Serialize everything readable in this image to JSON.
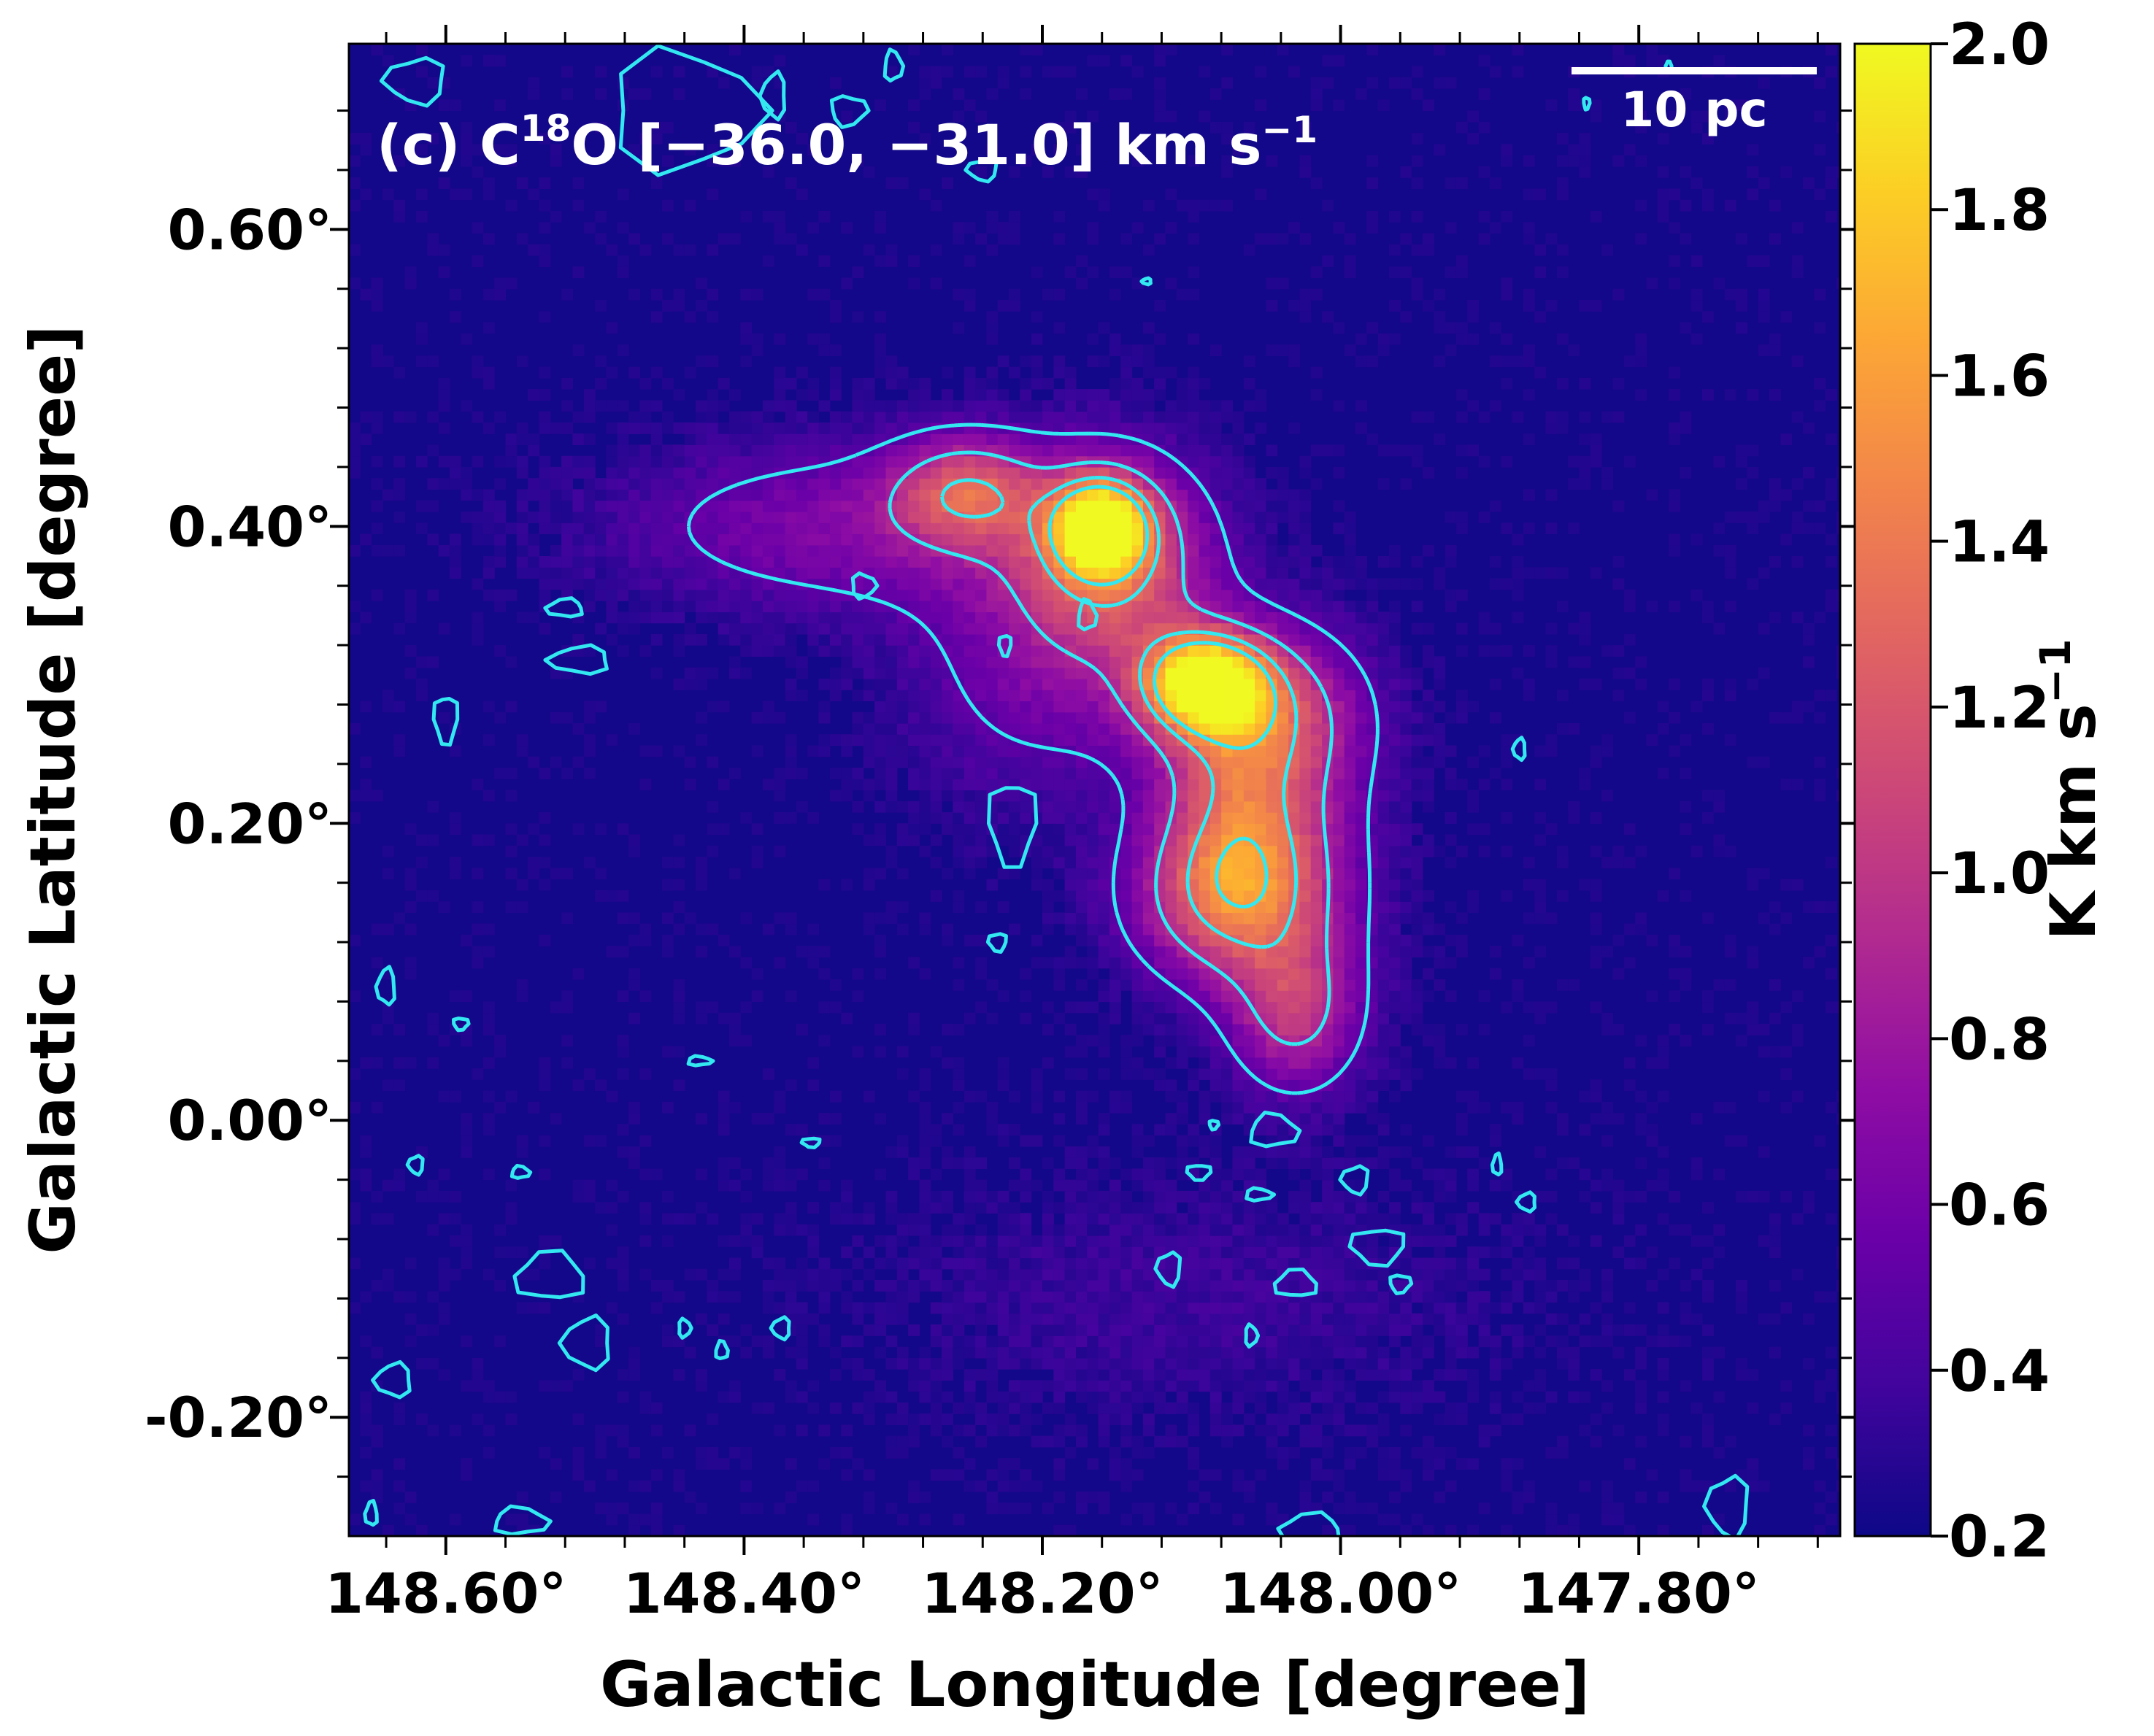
{
  "chart_data": {
    "type": "heatmap",
    "panel_label": "(c)",
    "title": "C¹⁸O [−36.0, −31.0] km s⁻¹",
    "title_parts": {
      "label": "(c) C",
      "sup": "18",
      "rest": "O [−36.0, −31.0] km s",
      "unit_sup": "−1"
    },
    "xlabel": "Galactic Longitude [degree]",
    "ylabel": "Galactic Latitude [degree]",
    "x_axis": {
      "reversed": true,
      "xlim": [
        148.665,
        147.665
      ],
      "ticks": [
        148.6,
        148.4,
        148.2,
        148.0,
        147.8
      ],
      "tick_labels": [
        "148.60°",
        "148.40°",
        "148.20°",
        "148.00°",
        "147.80°"
      ],
      "minor_step": 0.04
    },
    "y_axis": {
      "ylim": [
        -0.28,
        0.725
      ],
      "ticks": [
        0.6,
        0.4,
        0.2,
        0.0,
        -0.2
      ],
      "tick_labels": [
        "0.60°",
        "0.40°",
        "0.20°",
        "0.00°",
        "-0.20°"
      ],
      "minor_step": 0.04
    },
    "colorbar": {
      "label": "K km s",
      "label_sup": "−1",
      "colormap": "plasma",
      "range": [
        0.2,
        2.0
      ],
      "ticks": [
        0.2,
        0.4,
        0.6,
        0.8,
        1.0,
        1.2,
        1.4,
        1.6,
        1.8,
        2.0
      ],
      "tick_labels": [
        "0.2",
        "0.4",
        "0.6",
        "0.8",
        "1.0",
        "1.2",
        "1.4",
        "1.6",
        "1.8",
        "2.0"
      ]
    },
    "scale_bar": {
      "label": "10 pc"
    },
    "contour_color": "#33e8f0",
    "background_value": 0.22,
    "emission_components": [
      {
        "l": 148.161,
        "b": 0.4,
        "peak": 1.45,
        "sigma_l": 0.022,
        "sigma_b": 0.022
      },
      {
        "l": 148.15,
        "b": 0.375,
        "peak": 0.85,
        "sigma_l": 0.045,
        "sigma_b": 0.05
      },
      {
        "l": 148.251,
        "b": 0.425,
        "peak": 0.75,
        "sigma_l": 0.035,
        "sigma_b": 0.025
      },
      {
        "l": 148.09,
        "b": 0.295,
        "peak": 1.5,
        "sigma_l": 0.028,
        "sigma_b": 0.022
      },
      {
        "l": 148.06,
        "b": 0.275,
        "peak": 0.85,
        "sigma_l": 0.05,
        "sigma_b": 0.04
      },
      {
        "l": 148.08,
        "b": 0.15,
        "peak": 0.85,
        "sigma_l": 0.045,
        "sigma_b": 0.04
      },
      {
        "l": 148.07,
        "b": 0.2,
        "peak": 0.55,
        "sigma_l": 0.035,
        "sigma_b": 0.05
      },
      {
        "l": 148.03,
        "b": 0.07,
        "peak": 0.6,
        "sigma_l": 0.03,
        "sigma_b": 0.035
      },
      {
        "l": 148.33,
        "b": 0.4,
        "peak": 0.45,
        "sigma_l": 0.11,
        "sigma_b": 0.04
      },
      {
        "l": 148.21,
        "b": 0.31,
        "peak": 0.35,
        "sigma_l": 0.06,
        "sigma_b": 0.07
      },
      {
        "l": 148.03,
        "b": 0.17,
        "peak": 0.4,
        "sigma_l": 0.04,
        "sigma_b": 0.08
      },
      {
        "l": 148.1,
        "b": -0.12,
        "peak": 0.15,
        "sigma_l": 0.15,
        "sigma_b": 0.06
      }
    ],
    "contour_levels": [
      0.5,
      0.9,
      1.3,
      1.6
    ],
    "isolated_contours": [
      {
        "l": 148.52,
        "b": 0.345,
        "rl": 0.012,
        "rb": 0.006
      },
      {
        "l": 148.51,
        "b": 0.31,
        "rl": 0.02,
        "rb": 0.009
      },
      {
        "l": 148.6,
        "b": 0.27,
        "rl": 0.008,
        "rb": 0.016
      },
      {
        "l": 148.32,
        "b": 0.36,
        "rl": 0.008,
        "rb": 0.008
      },
      {
        "l": 148.22,
        "b": 0.2,
        "rl": 0.016,
        "rb": 0.028
      },
      {
        "l": 148.23,
        "b": 0.12,
        "rl": 0.006,
        "rb": 0.006
      },
      {
        "l": 147.88,
        "b": 0.25,
        "rl": 0.004,
        "rb": 0.007
      },
      {
        "l": 148.43,
        "b": 0.04,
        "rl": 0.008,
        "rb": 0.003
      },
      {
        "l": 148.59,
        "b": 0.065,
        "rl": 0.005,
        "rb": 0.004
      },
      {
        "l": 148.55,
        "b": -0.035,
        "rl": 0.006,
        "rb": 0.004
      },
      {
        "l": 148.355,
        "b": -0.015,
        "rl": 0.006,
        "rb": 0.003
      },
      {
        "l": 148.53,
        "b": -0.105,
        "rl": 0.023,
        "rb": 0.016
      },
      {
        "l": 148.505,
        "b": -0.15,
        "rl": 0.016,
        "rb": 0.017
      },
      {
        "l": 148.635,
        "b": -0.175,
        "rl": 0.012,
        "rb": 0.011
      },
      {
        "l": 148.44,
        "b": -0.14,
        "rl": 0.004,
        "rb": 0.006
      },
      {
        "l": 148.375,
        "b": -0.14,
        "rl": 0.006,
        "rb": 0.007
      },
      {
        "l": 148.415,
        "b": -0.155,
        "rl": 0.004,
        "rb": 0.006
      },
      {
        "l": 148.115,
        "b": -0.1,
        "rl": 0.008,
        "rb": 0.011
      },
      {
        "l": 148.095,
        "b": -0.035,
        "rl": 0.008,
        "rb": 0.005
      },
      {
        "l": 148.055,
        "b": -0.05,
        "rl": 0.009,
        "rb": 0.004
      },
      {
        "l": 148.045,
        "b": -0.007,
        "rl": 0.016,
        "rb": 0.011
      },
      {
        "l": 147.99,
        "b": -0.04,
        "rl": 0.009,
        "rb": 0.009
      },
      {
        "l": 147.975,
        "b": -0.085,
        "rl": 0.018,
        "rb": 0.012
      },
      {
        "l": 148.03,
        "b": -0.11,
        "rl": 0.014,
        "rb": 0.009
      },
      {
        "l": 147.96,
        "b": -0.11,
        "rl": 0.007,
        "rb": 0.006
      },
      {
        "l": 148.06,
        "b": -0.145,
        "rl": 0.004,
        "rb": 0.007
      },
      {
        "l": 147.895,
        "b": -0.03,
        "rl": 0.003,
        "rb": 0.007
      },
      {
        "l": 147.875,
        "b": -0.055,
        "rl": 0.006,
        "rb": 0.006
      },
      {
        "l": 148.085,
        "b": -0.003,
        "rl": 0.003,
        "rb": 0.003
      },
      {
        "l": 148.17,
        "b": 0.34,
        "rl": 0.006,
        "rb": 0.01
      },
      {
        "l": 148.225,
        "b": 0.32,
        "rl": 0.004,
        "rb": 0.007
      },
      {
        "l": 148.62,
        "b": -0.03,
        "rl": 0.005,
        "rb": 0.006
      },
      {
        "l": 148.64,
        "b": 0.09,
        "rl": 0.006,
        "rb": 0.012
      },
      {
        "l": 148.65,
        "b": -0.265,
        "rl": 0.004,
        "rb": 0.008
      },
      {
        "l": 148.55,
        "b": -0.27,
        "rl": 0.018,
        "rb": 0.009
      },
      {
        "l": 148.02,
        "b": -0.275,
        "rl": 0.02,
        "rb": 0.01
      },
      {
        "l": 147.74,
        "b": -0.26,
        "rl": 0.014,
        "rb": 0.02
      },
      {
        "l": 148.44,
        "b": 0.68,
        "rl": 0.05,
        "rb": 0.04
      },
      {
        "l": 148.62,
        "b": 0.7,
        "rl": 0.02,
        "rb": 0.015
      },
      {
        "l": 148.38,
        "b": 0.69,
        "rl": 0.008,
        "rb": 0.015
      },
      {
        "l": 148.3,
        "b": 0.71,
        "rl": 0.006,
        "rb": 0.01
      },
      {
        "l": 148.33,
        "b": 0.68,
        "rl": 0.012,
        "rb": 0.01
      },
      {
        "l": 148.24,
        "b": 0.64,
        "rl": 0.01,
        "rb": 0.007
      },
      {
        "l": 147.835,
        "b": 0.685,
        "rl": 0.002,
        "rb": 0.004
      },
      {
        "l": 147.78,
        "b": 0.71,
        "rl": 0.002,
        "rb": 0.003
      },
      {
        "l": 148.13,
        "b": 0.565,
        "rl": 0.003,
        "rb": 0.002
      }
    ]
  }
}
